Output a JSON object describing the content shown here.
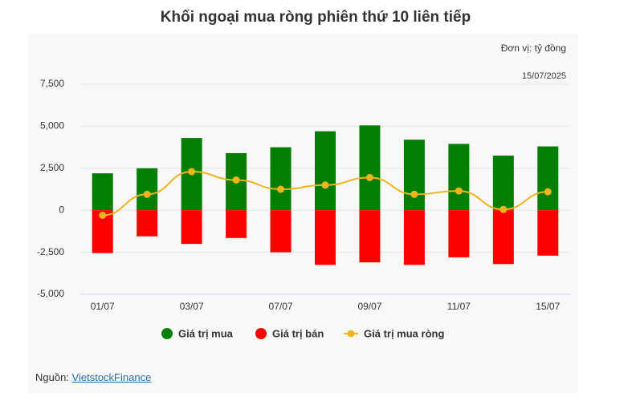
{
  "chart_data": {
    "type": "bar",
    "title": "Khối ngoại mua ròng phiên thứ 10 liên tiếp",
    "unit_note": "Đơn vị: tỷ đồng",
    "date_note": "15/07/2025",
    "source_label": "Nguồn:",
    "source_link": "VietstockFinance",
    "categories": [
      "01/07",
      null,
      "03/07",
      null,
      "07/07",
      null,
      "09/07",
      null,
      "11/07",
      null,
      "15/07"
    ],
    "series": [
      {
        "name": "Giá trị mua",
        "type": "bar",
        "color": "#007f00",
        "values": [
          2200,
          2500,
          4300,
          3400,
          3750,
          4700,
          5050,
          4200,
          3950,
          3250,
          3800
        ]
      },
      {
        "name": "Giá trị bán",
        "type": "bar",
        "color": "#ff0000",
        "values": [
          -2550,
          -1550,
          -2000,
          -1650,
          -2500,
          -3250,
          -3100,
          -3250,
          -2800,
          -3200,
          -2700
        ]
      },
      {
        "name": "Giá trị mua ròng",
        "type": "line",
        "color": "#f0b41e",
        "values": [
          -300,
          950,
          2300,
          1800,
          1250,
          1500,
          1950,
          950,
          1150,
          50,
          1100
        ]
      }
    ],
    "ylim": [
      -5000,
      7500
    ],
    "yticks": [
      {
        "value": 7500,
        "label": "7,500"
      },
      {
        "value": 5000,
        "label": "5,000"
      },
      {
        "value": 2500,
        "label": "2,500"
      },
      0,
      {
        "value": -2500,
        "label": "-2,500"
      },
      {
        "value": -5000,
        "label": "-5,000"
      }
    ],
    "grid": true
  }
}
